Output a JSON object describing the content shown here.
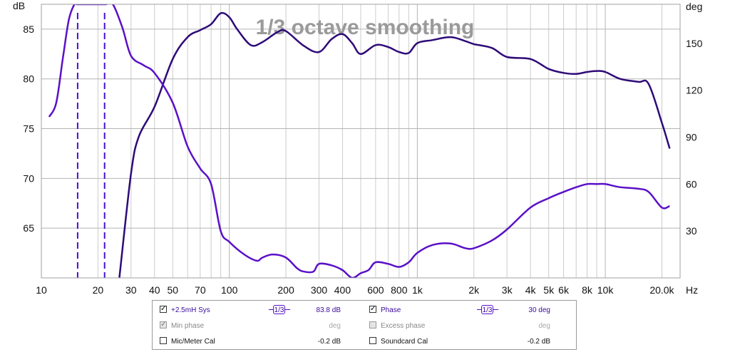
{
  "chart_data": {
    "type": "line",
    "title": "1/3 octave smoothing",
    "y_left_unit": "dB",
    "y_right_unit": "deg",
    "x_unit": "Hz",
    "x_scale": "log",
    "xlim": [
      10,
      25000
    ],
    "ylim_left": [
      60,
      87.5
    ],
    "ylim_right": [
      0,
      175
    ],
    "grid": true,
    "x_ticks": [
      "10",
      "20",
      "30",
      "40",
      "50",
      "70",
      "100",
      "200",
      "300",
      "400",
      "600",
      "800",
      "1k",
      "2k",
      "3k",
      "4k",
      "5k",
      "6k",
      "8k",
      "10k",
      "20.0k"
    ],
    "y_left_ticks": [
      "85",
      "80",
      "75",
      "70",
      "65"
    ],
    "y_right_ticks": [
      "150",
      "120",
      "90",
      "60",
      "30"
    ],
    "series": [
      {
        "name": "+2.5mH Sys",
        "axis": "left",
        "color": "#2e0a78",
        "x": [
          26,
          30,
          33,
          40,
          50,
          60,
          70,
          80,
          90,
          100,
          110,
          130,
          150,
          180,
          200,
          250,
          300,
          350,
          400,
          450,
          500,
          600,
          700,
          800,
          900,
          1000,
          1200,
          1500,
          1800,
          2000,
          2500,
          3000,
          4000,
          5000,
          6000,
          7000,
          8000,
          9000,
          10000,
          12000,
          15000,
          17000,
          20000,
          22000
        ],
        "values": [
          60.0,
          70.5,
          74.2,
          77.2,
          82.0,
          84.2,
          84.9,
          85.5,
          86.6,
          86.2,
          85.0,
          83.4,
          83.7,
          84.7,
          84.8,
          83.3,
          82.7,
          84.0,
          84.5,
          83.6,
          82.5,
          83.4,
          83.2,
          82.7,
          82.6,
          83.6,
          83.9,
          84.2,
          83.8,
          83.5,
          83.1,
          82.2,
          82.0,
          81.0,
          80.6,
          80.5,
          80.7,
          80.8,
          80.7,
          80.0,
          79.7,
          79.5,
          75.6,
          73.0
        ]
      },
      {
        "name": "Phase",
        "axis": "right",
        "color": "#5a10c8",
        "x": [
          11,
          12,
          13,
          14,
          15,
          15.6,
          20,
          22,
          24,
          27,
          30,
          35,
          40,
          50,
          60,
          70,
          80,
          90,
          100,
          120,
          140,
          150,
          170,
          200,
          230,
          250,
          280,
          300,
          350,
          400,
          450,
          500,
          550,
          600,
          700,
          800,
          900,
          1000,
          1200,
          1500,
          1800,
          2000,
          2500,
          3000,
          4000,
          5000,
          6000,
          7000,
          8000,
          9000,
          10000,
          12000,
          15000,
          17000,
          20000,
          22000
        ],
        "values": [
          103,
          112,
          140,
          165,
          175,
          175,
          175,
          175,
          175,
          160,
          142,
          136,
          131,
          112,
          84,
          70,
          60,
          30,
          23,
          15,
          11,
          13,
          15,
          13,
          6,
          4,
          4,
          9,
          8,
          5,
          0,
          3,
          5,
          10,
          9,
          7,
          10,
          16,
          21,
          22,
          19,
          19,
          24,
          31,
          45,
          51,
          55,
          58,
          60,
          60,
          60,
          58,
          57,
          55,
          45,
          46
        ]
      }
    ],
    "markers": [
      {
        "x": 15.6,
        "style": "dashed"
      },
      {
        "x": 21.7,
        "style": "dashed"
      }
    ]
  },
  "legend": {
    "row1": {
      "left_label": "+2.5mH Sys",
      "left_smooth": "1/3",
      "left_value": "83.8 dB",
      "right_label": "Phase",
      "right_smooth": "1/3",
      "right_value": "30 deg"
    },
    "row2": {
      "left_label": "Min phase",
      "left_value": "deg",
      "right_label": "Excess phase",
      "right_value": "deg"
    },
    "row3": {
      "left_label": "Mic/Meter Cal",
      "left_value": "-0.2 dB",
      "right_label": "Soundcard Cal",
      "right_value": "-0.2 dB"
    }
  }
}
